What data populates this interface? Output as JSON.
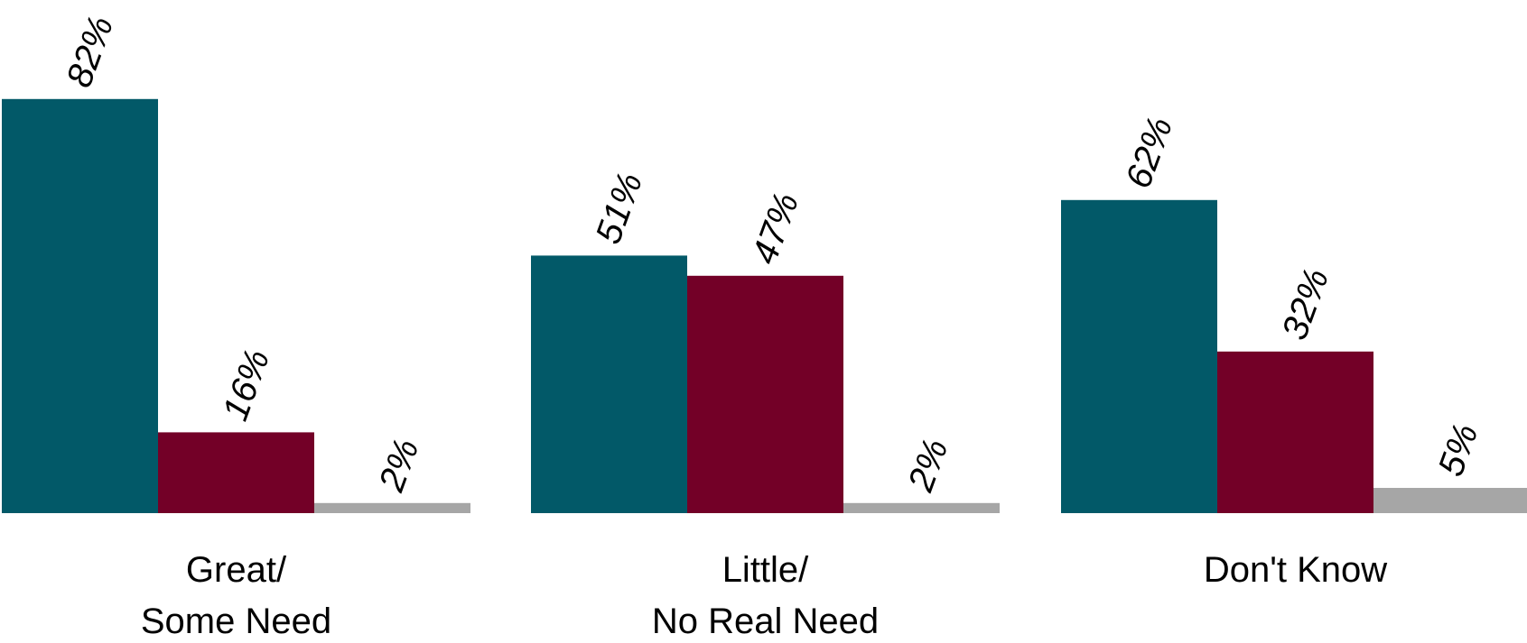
{
  "chart_data": {
    "type": "bar",
    "categories": [
      [
        "Great/",
        "Some Need"
      ],
      [
        "Little/",
        "No Real Need"
      ],
      [
        "Don't Know"
      ]
    ],
    "series": [
      {
        "values": [
          82,
          51,
          62
        ],
        "color": "#025968"
      },
      {
        "values": [
          16,
          47,
          32
        ],
        "color": "#730027"
      },
      {
        "values": [
          2,
          2,
          5
        ],
        "color": "#a6a6a6"
      }
    ],
    "value_suffix": "%",
    "ylim": [
      0,
      100
    ],
    "grid": false,
    "legend": "none"
  }
}
